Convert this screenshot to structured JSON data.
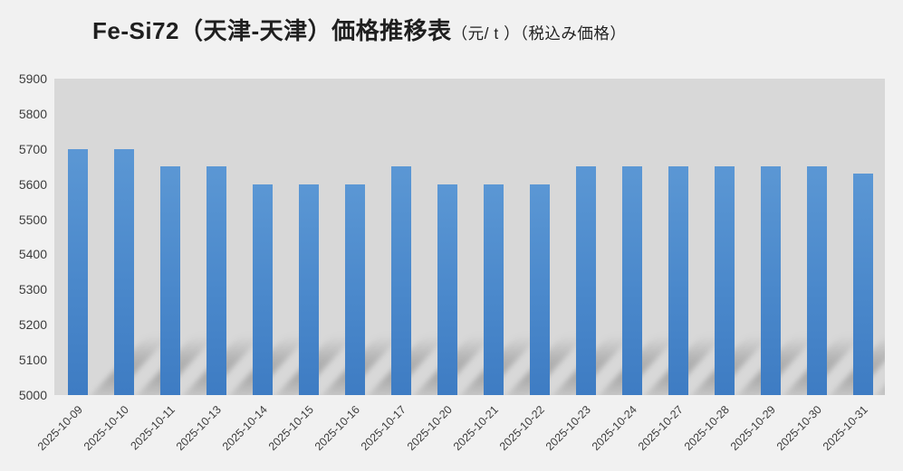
{
  "title": {
    "main": "Fe-Si72（天津-天津）価格推移表",
    "unit": "（元/ t ）",
    "tax_note": "（税込み価格）"
  },
  "chart_data": {
    "type": "bar",
    "title": "Fe-Si72（天津-天津）価格推移表（元/ t ）（税込み価格）",
    "categories": [
      "2025-10-09",
      "2025-10-10",
      "2025-10-11",
      "2025-10-13",
      "2025-10-14",
      "2025-10-15",
      "2025-10-16",
      "2025-10-17",
      "2025-10-20",
      "2025-10-21",
      "2025-10-22",
      "2025-10-23",
      "2025-10-24",
      "2025-10-27",
      "2025-10-28",
      "2025-10-29",
      "2025-10-30",
      "2025-10-31"
    ],
    "values": [
      5700,
      5700,
      5650,
      5650,
      5600,
      5600,
      5600,
      5650,
      5600,
      5600,
      5600,
      5650,
      5650,
      5650,
      5650,
      5650,
      5650,
      5630
    ],
    "xlabel": "",
    "ylabel": "",
    "ylim": [
      5000,
      5900
    ],
    "yticks": [
      5900,
      5800,
      5700,
      5600,
      5500,
      5400,
      5300,
      5200,
      5100,
      5000
    ],
    "grid": false,
    "legend_position": "none",
    "colors": {
      "bar_top": "#5b97d4",
      "bar_bottom": "#3e7cc3",
      "plot_background": "#d8d8d8",
      "page_background": "#f1f1f1",
      "axis_text": "#3d3d3d",
      "title_text": "#1f1f1f"
    }
  }
}
